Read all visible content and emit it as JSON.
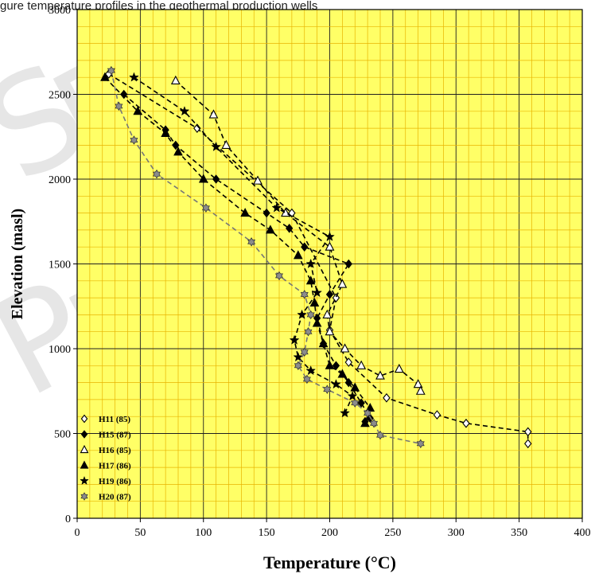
{
  "caption": "gure temperature profiles in the geothermal production wells",
  "watermark_letters": "SERPE",
  "colors": {
    "plot_bg": "#ffff66",
    "grid_minor": "#e8b400",
    "grid_major": "#202020",
    "line": "#000000",
    "H20_fill": "#8c8c8c",
    "watermark": "#c8c8c8"
  },
  "chart_data": {
    "type": "scatter",
    "xlabel": "Temperature (°C)",
    "ylabel": "Elevation (masl)",
    "xlim": [
      0,
      400
    ],
    "ylim": [
      0,
      3000
    ],
    "x_ticks": [
      "0",
      "50",
      "100",
      "150",
      "200",
      "250",
      "300",
      "350",
      "400"
    ],
    "y_ticks": [
      "0",
      "500",
      "1000",
      "1500",
      "2000",
      "2500",
      "3000"
    ],
    "grid": true,
    "legend_position": "bottom-left",
    "series": [
      {
        "name": "H11 (85)",
        "marker": "diamond-open",
        "line": "dashed",
        "points": [
          [
            25,
            2620
          ],
          [
            95,
            2300
          ],
          [
            170,
            1800
          ],
          [
            205,
            1300
          ],
          [
            200,
            1110
          ],
          [
            215,
            920
          ],
          [
            245,
            710
          ],
          [
            285,
            610
          ],
          [
            308,
            560
          ],
          [
            357,
            510
          ],
          [
            357,
            440
          ]
        ]
      },
      {
        "name": "H15 (87)",
        "marker": "diamond-filled",
        "line": "dashed",
        "points": [
          [
            37,
            2500
          ],
          [
            70,
            2290
          ],
          [
            78,
            2200
          ],
          [
            110,
            2000
          ],
          [
            150,
            1800
          ],
          [
            168,
            1710
          ],
          [
            180,
            1600
          ],
          [
            215,
            1500
          ],
          [
            200,
            1320
          ],
          [
            190,
            1180
          ],
          [
            195,
            1030
          ],
          [
            205,
            900
          ],
          [
            215,
            800
          ],
          [
            225,
            680
          ],
          [
            232,
            590
          ],
          [
            228,
            570
          ]
        ]
      },
      {
        "name": "H16 (85)",
        "marker": "triangle-open",
        "line": "dashed",
        "points": [
          [
            78,
            2580
          ],
          [
            108,
            2380
          ],
          [
            118,
            2200
          ],
          [
            143,
            1990
          ],
          [
            165,
            1800
          ],
          [
            200,
            1600
          ],
          [
            210,
            1380
          ],
          [
            198,
            1200
          ],
          [
            200,
            1100
          ],
          [
            212,
            1000
          ],
          [
            225,
            900
          ],
          [
            240,
            840
          ],
          [
            255,
            880
          ],
          [
            270,
            790
          ],
          [
            272,
            750
          ]
        ]
      },
      {
        "name": "H17 (86)",
        "marker": "triangle-filled",
        "line": "dashed",
        "points": [
          [
            22,
            2600
          ],
          [
            48,
            2400
          ],
          [
            70,
            2270
          ],
          [
            80,
            2160
          ],
          [
            100,
            2000
          ],
          [
            133,
            1800
          ],
          [
            153,
            1700
          ],
          [
            175,
            1550
          ],
          [
            185,
            1400
          ],
          [
            188,
            1270
          ],
          [
            190,
            1150
          ],
          [
            195,
            1030
          ],
          [
            200,
            900
          ],
          [
            210,
            850
          ],
          [
            220,
            770
          ],
          [
            232,
            650
          ],
          [
            228,
            560
          ]
        ]
      },
      {
        "name": "H19 (86)",
        "marker": "star",
        "line": "dashed",
        "points": [
          [
            45,
            2600
          ],
          [
            85,
            2400
          ],
          [
            110,
            2190
          ],
          [
            158,
            1830
          ],
          [
            200,
            1660
          ],
          [
            185,
            1500
          ],
          [
            190,
            1330
          ],
          [
            178,
            1200
          ],
          [
            172,
            1050
          ],
          [
            175,
            950
          ],
          [
            185,
            870
          ],
          [
            205,
            790
          ],
          [
            218,
            720
          ],
          [
            212,
            620
          ]
        ]
      },
      {
        "name": "H20 (87)",
        "marker": "star-of-david",
        "line": "dashed",
        "points": [
          [
            27,
            2640
          ],
          [
            33,
            2430
          ],
          [
            45,
            2230
          ],
          [
            63,
            2030
          ],
          [
            102,
            1830
          ],
          [
            138,
            1630
          ],
          [
            160,
            1430
          ],
          [
            180,
            1320
          ],
          [
            185,
            1200
          ],
          [
            183,
            1100
          ],
          [
            180,
            980
          ],
          [
            175,
            900
          ],
          [
            182,
            820
          ],
          [
            198,
            760
          ],
          [
            220,
            680
          ],
          [
            230,
            620
          ],
          [
            235,
            560
          ],
          [
            240,
            490
          ],
          [
            272,
            440
          ]
        ]
      }
    ]
  }
}
